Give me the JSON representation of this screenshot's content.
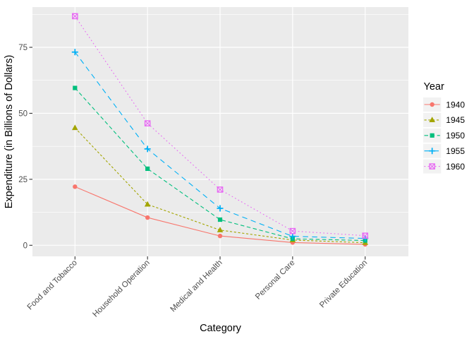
{
  "chart_data": {
    "type": "line",
    "title": "",
    "xlabel": "Category",
    "ylabel": "Expenditure (in Billions of Dollars)",
    "legend_title": "Year",
    "legend_position": "right",
    "grid": true,
    "categories": [
      "Food and Tobacco",
      "Household Operation",
      "Medical and Health",
      "Personal Care",
      "Private Education"
    ],
    "yticks": [
      0,
      25,
      50,
      75
    ],
    "ylim": [
      -4,
      91
    ],
    "series": [
      {
        "name": "1940",
        "color": "#F8766D",
        "marker": "circle",
        "linetype": "solid",
        "values": [
          22.2,
          10.5,
          3.53,
          1.04,
          0.341
        ]
      },
      {
        "name": "1945",
        "color": "#A3A500",
        "marker": "triangle",
        "linetype": "dotted-short",
        "values": [
          44.5,
          15.5,
          5.76,
          1.98,
          0.974
        ]
      },
      {
        "name": "1950",
        "color": "#00BF7D",
        "marker": "square",
        "linetype": "dashed",
        "values": [
          59.6,
          29.0,
          9.71,
          2.45,
          1.8
        ]
      },
      {
        "name": "1955",
        "color": "#00B0F6",
        "marker": "plus",
        "linetype": "longdash",
        "values": [
          73.2,
          36.5,
          14.0,
          3.4,
          2.6
        ]
      },
      {
        "name": "1960",
        "color": "#E76BF3",
        "marker": "square-cross",
        "linetype": "dotted",
        "values": [
          86.8,
          46.2,
          21.1,
          5.4,
          3.64
        ]
      }
    ],
    "colors": {
      "panel_bg": "#EBEBEB",
      "grid": "#FFFFFF",
      "axis_text": "#4D4D4D",
      "axis_title": "#000000",
      "tick_mark": "#333333",
      "legend_key_bg": "#F2F2F2",
      "legend_text": "#000000",
      "background": "#FFFFFF"
    }
  }
}
